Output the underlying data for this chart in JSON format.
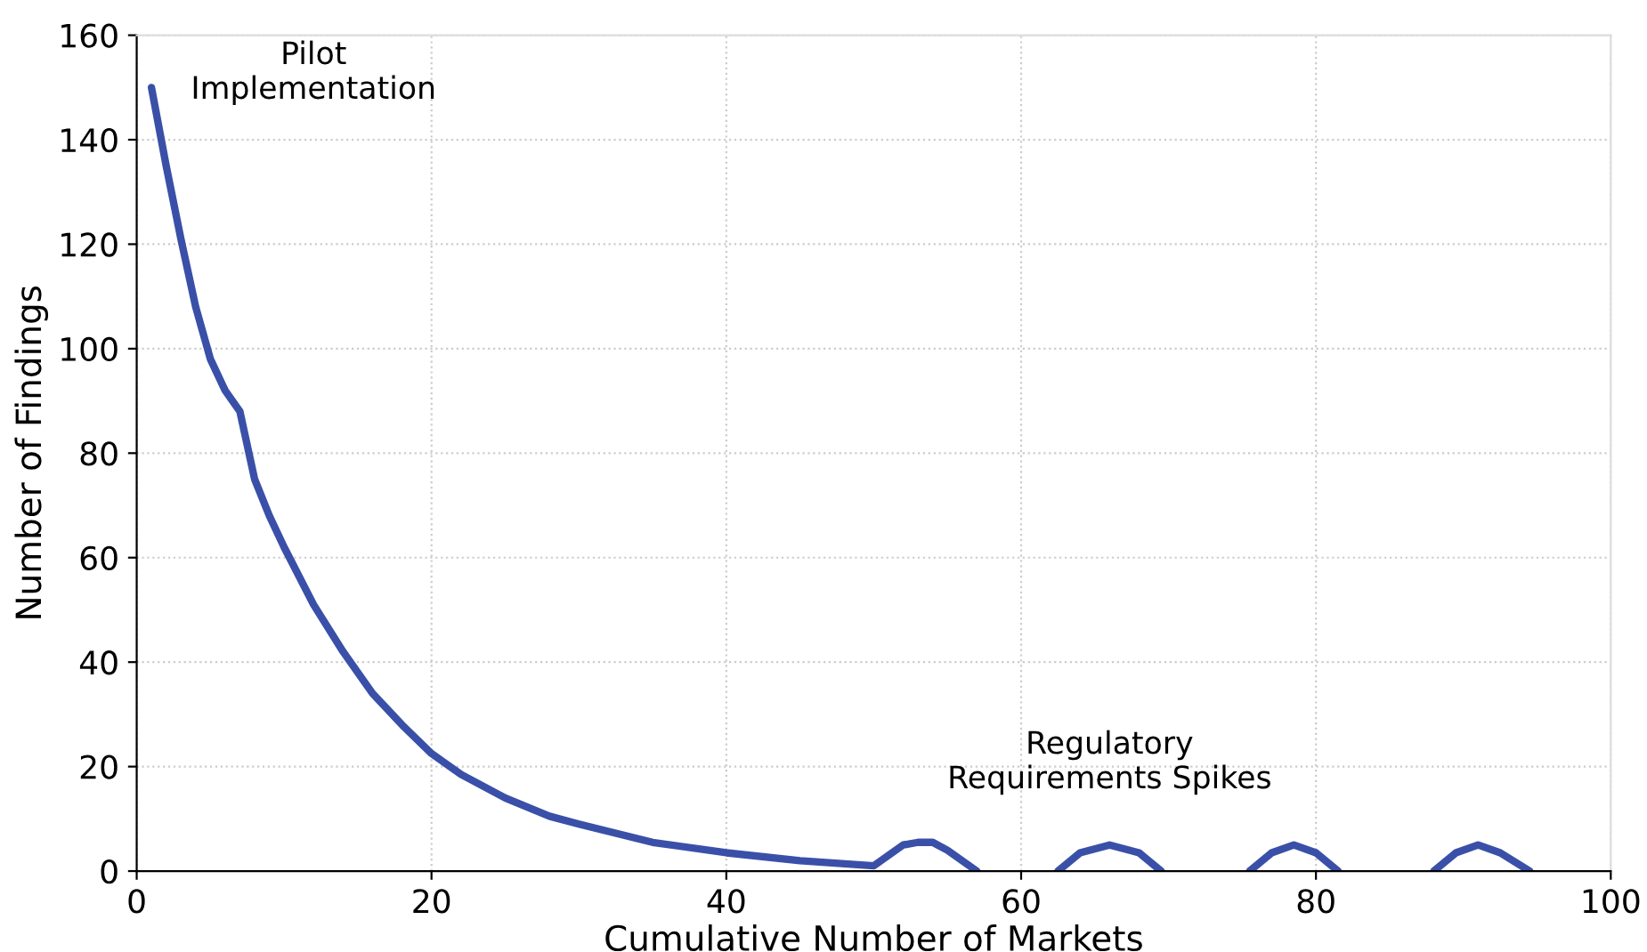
{
  "chart_data": {
    "type": "line",
    "xlabel": "Cumulative Number of Markets",
    "ylabel": "Number of Findings",
    "x": [
      1,
      2,
      3,
      4,
      5,
      6,
      7,
      8,
      9,
      10,
      12,
      14,
      16,
      18,
      20,
      22,
      25,
      28,
      30,
      35,
      40,
      45,
      50,
      51,
      52,
      53,
      54,
      55,
      56,
      57,
      60,
      62.5,
      64,
      66,
      68,
      69.5,
      72,
      75.5,
      77,
      78.5,
      80,
      81.5,
      85,
      88,
      89.5,
      91,
      92.5,
      94.5
    ],
    "series": [
      {
        "color": "#3a50a8",
        "values": [
          150,
          135,
          121,
          108,
          98,
          92,
          88,
          75,
          68,
          62,
          51,
          42,
          34,
          28,
          22.5,
          18.5,
          14,
          10.5,
          9,
          5.5,
          3.5,
          2,
          1,
          3,
          5,
          5.5,
          5.5,
          4,
          2,
          0,
          null,
          0,
          3.5,
          5,
          3.5,
          0,
          null,
          0,
          3.5,
          5,
          3.5,
          0,
          null,
          0,
          3.5,
          5,
          3.5,
          0
        ]
      }
    ],
    "xlim": [
      0,
      100
    ],
    "ylim": [
      0,
      160
    ],
    "xticks": [
      0,
      20,
      40,
      60,
      80,
      100
    ],
    "yticks": [
      0,
      20,
      40,
      60,
      80,
      100,
      120,
      140,
      160
    ],
    "grid": true,
    "marker": "none",
    "line_style": "solid",
    "annotations": [
      "Pilot\nImplementation",
      "Regulatory\nRequirements Spikes"
    ]
  }
}
